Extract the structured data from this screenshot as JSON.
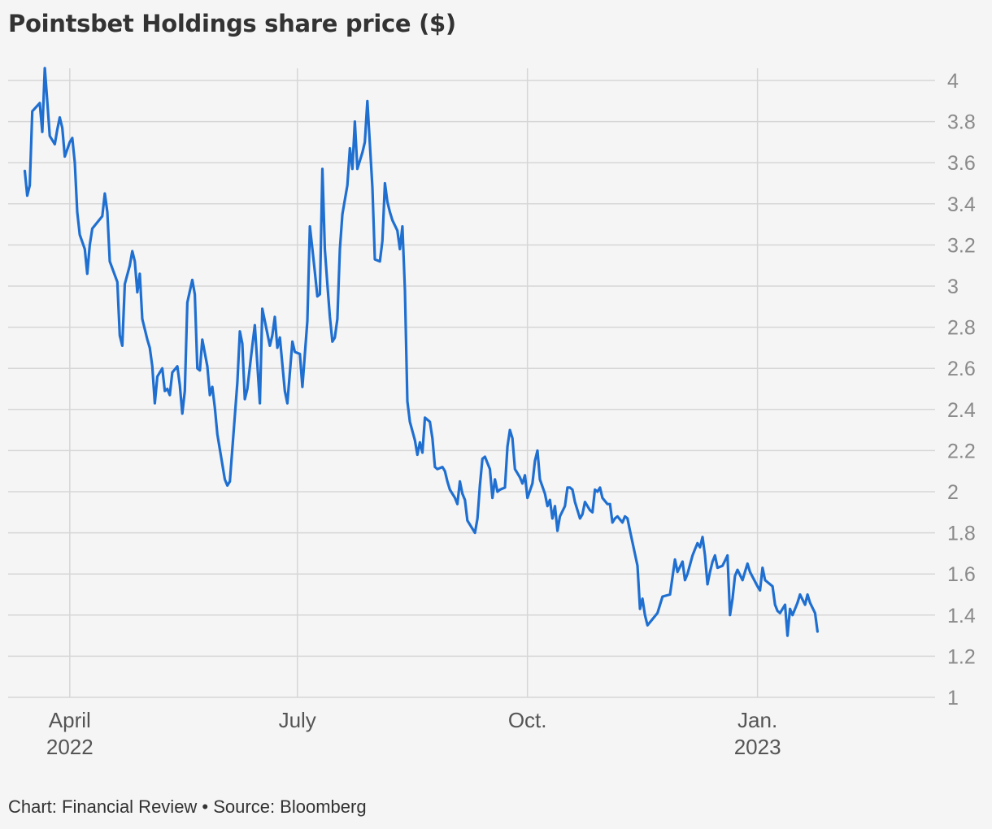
{
  "chart_data": {
    "type": "line",
    "title": "Pointsbet Holdings share price ($)",
    "xlabel": "",
    "ylabel": "",
    "ylim": [
      1,
      4
    ],
    "yticks": [
      "4",
      "3.8",
      "3.6",
      "3.4",
      "3.2",
      "3",
      "2.8",
      "2.6",
      "2.4",
      "2.2",
      "2",
      "1.8",
      "1.6",
      "1.4",
      "1.2",
      "1"
    ],
    "xticks": [
      {
        "label": "April",
        "sub": "2022",
        "day": 0
      },
      {
        "label": "July",
        "sub": "",
        "day": 91
      },
      {
        "label": "Oct.",
        "sub": "",
        "day": 183
      },
      {
        "label": "Jan.",
        "sub": "2023",
        "day": 275
      }
    ],
    "xlim_days": [
      -24,
      346
    ],
    "grid": true,
    "series": [
      {
        "name": "Pointsbet Holdings",
        "color": "#1f6fd1",
        "points": [
          [
            -18,
            3.56
          ],
          [
            -17,
            3.44
          ],
          [
            -16,
            3.49
          ],
          [
            -15,
            3.85
          ],
          [
            -12,
            3.89
          ],
          [
            -11,
            3.75
          ],
          [
            -10,
            4.06
          ],
          [
            -9,
            3.9
          ],
          [
            -8,
            3.73
          ],
          [
            -6,
            3.69
          ],
          [
            -5,
            3.76
          ],
          [
            -4,
            3.82
          ],
          [
            -3,
            3.77
          ],
          [
            -2,
            3.63
          ],
          [
            0,
            3.7
          ],
          [
            1,
            3.72
          ],
          [
            2,
            3.6
          ],
          [
            3,
            3.36
          ],
          [
            4,
            3.25
          ],
          [
            6,
            3.18
          ],
          [
            7,
            3.06
          ],
          [
            8,
            3.2
          ],
          [
            9,
            3.28
          ],
          [
            13,
            3.34
          ],
          [
            14,
            3.45
          ],
          [
            15,
            3.36
          ],
          [
            16,
            3.12
          ],
          [
            19,
            3.02
          ],
          [
            20,
            2.76
          ],
          [
            21,
            2.71
          ],
          [
            22,
            3.01
          ],
          [
            24,
            3.1
          ],
          [
            25,
            3.17
          ],
          [
            26,
            3.12
          ],
          [
            27,
            2.97
          ],
          [
            28,
            3.06
          ],
          [
            29,
            2.84
          ],
          [
            31,
            2.74
          ],
          [
            32,
            2.7
          ],
          [
            33,
            2.61
          ],
          [
            34,
            2.43
          ],
          [
            35,
            2.56
          ],
          [
            37,
            2.6
          ],
          [
            38,
            2.49
          ],
          [
            39,
            2.5
          ],
          [
            40,
            2.47
          ],
          [
            41,
            2.58
          ],
          [
            43,
            2.61
          ],
          [
            44,
            2.52
          ],
          [
            45,
            2.38
          ],
          [
            46,
            2.49
          ],
          [
            47,
            2.92
          ],
          [
            49,
            3.03
          ],
          [
            50,
            2.96
          ],
          [
            51,
            2.6
          ],
          [
            52,
            2.59
          ],
          [
            53,
            2.74
          ],
          [
            55,
            2.61
          ],
          [
            56,
            2.47
          ],
          [
            57,
            2.51
          ],
          [
            58,
            2.41
          ],
          [
            59,
            2.28
          ],
          [
            62,
            2.06
          ],
          [
            63,
            2.03
          ],
          [
            64,
            2.05
          ],
          [
            67,
            2.53
          ],
          [
            68,
            2.78
          ],
          [
            69,
            2.72
          ],
          [
            70,
            2.45
          ],
          [
            71,
            2.5
          ],
          [
            73,
            2.71
          ],
          [
            74,
            2.81
          ],
          [
            75,
            2.62
          ],
          [
            76,
            2.43
          ],
          [
            77,
            2.89
          ],
          [
            78,
            2.83
          ],
          [
            80,
            2.71
          ],
          [
            81,
            2.76
          ],
          [
            82,
            2.85
          ],
          [
            83,
            2.7
          ],
          [
            84,
            2.75
          ],
          [
            86,
            2.49
          ],
          [
            87,
            2.43
          ],
          [
            89,
            2.73
          ],
          [
            90,
            2.68
          ],
          [
            92,
            2.67
          ],
          [
            93,
            2.51
          ],
          [
            95,
            2.83
          ],
          [
            96,
            3.29
          ],
          [
            97,
            3.18
          ],
          [
            98,
            3.07
          ],
          [
            99,
            2.95
          ],
          [
            100,
            2.96
          ],
          [
            101,
            3.57
          ],
          [
            102,
            3.18
          ],
          [
            103,
            3.01
          ],
          [
            104,
            2.85
          ],
          [
            105,
            2.73
          ],
          [
            106,
            2.75
          ],
          [
            107,
            2.84
          ],
          [
            108,
            3.18
          ],
          [
            109,
            3.35
          ],
          [
            111,
            3.49
          ],
          [
            112,
            3.67
          ],
          [
            113,
            3.57
          ],
          [
            114,
            3.8
          ],
          [
            115,
            3.57
          ],
          [
            116,
            3.61
          ],
          [
            117,
            3.65
          ],
          [
            118,
            3.7
          ],
          [
            119,
            3.9
          ],
          [
            121,
            3.48
          ],
          [
            122,
            3.13
          ],
          [
            124,
            3.12
          ],
          [
            125,
            3.22
          ],
          [
            126,
            3.5
          ],
          [
            127,
            3.41
          ],
          [
            128,
            3.36
          ],
          [
            129,
            3.32
          ],
          [
            131,
            3.27
          ],
          [
            132,
            3.18
          ],
          [
            133,
            3.29
          ],
          [
            134,
            2.98
          ],
          [
            135,
            2.44
          ],
          [
            136,
            2.34
          ],
          [
            138,
            2.25
          ],
          [
            139,
            2.18
          ],
          [
            140,
            2.24
          ],
          [
            141,
            2.19
          ],
          [
            142,
            2.36
          ],
          [
            144,
            2.34
          ],
          [
            145,
            2.26
          ],
          [
            146,
            2.12
          ],
          [
            147,
            2.11
          ],
          [
            149,
            2.12
          ],
          [
            150,
            2.1
          ],
          [
            151,
            2.05
          ],
          [
            152,
            2.01
          ],
          [
            154,
            1.97
          ],
          [
            155,
            1.94
          ],
          [
            156,
            2.05
          ],
          [
            157,
            1.99
          ],
          [
            158,
            1.96
          ],
          [
            159,
            1.86
          ],
          [
            161,
            1.82
          ],
          [
            162,
            1.8
          ],
          [
            163,
            1.87
          ],
          [
            164,
            2.03
          ],
          [
            165,
            2.16
          ],
          [
            166,
            2.17
          ],
          [
            168,
            2.11
          ],
          [
            169,
            1.97
          ],
          [
            170,
            2.06
          ],
          [
            171,
            2.0
          ],
          [
            172,
            2.01
          ],
          [
            174,
            2.02
          ],
          [
            175,
            2.22
          ],
          [
            176,
            2.3
          ],
          [
            177,
            2.26
          ],
          [
            178,
            2.11
          ],
          [
            180,
            2.07
          ],
          [
            181,
            2.04
          ],
          [
            182,
            2.08
          ],
          [
            183,
            1.97
          ],
          [
            185,
            2.04
          ],
          [
            186,
            2.15
          ],
          [
            187,
            2.2
          ],
          [
            188,
            2.06
          ],
          [
            190,
            1.99
          ],
          [
            191,
            1.93
          ],
          [
            192,
            1.96
          ],
          [
            193,
            1.87
          ],
          [
            194,
            1.93
          ],
          [
            195,
            1.81
          ],
          [
            196,
            1.88
          ],
          [
            198,
            1.93
          ],
          [
            199,
            2.02
          ],
          [
            200,
            2.02
          ],
          [
            201,
            2.01
          ],
          [
            202,
            1.95
          ],
          [
            204,
            1.87
          ],
          [
            205,
            1.89
          ],
          [
            206,
            1.95
          ],
          [
            208,
            1.91
          ],
          [
            209,
            1.9
          ],
          [
            210,
            2.01
          ],
          [
            211,
            2.0
          ],
          [
            212,
            2.02
          ],
          [
            213,
            1.97
          ],
          [
            215,
            1.94
          ],
          [
            216,
            1.94
          ],
          [
            217,
            1.85
          ],
          [
            218,
            1.87
          ],
          [
            219,
            1.88
          ],
          [
            221,
            1.85
          ],
          [
            222,
            1.88
          ],
          [
            223,
            1.87
          ],
          [
            224,
            1.81
          ],
          [
            227,
            1.64
          ],
          [
            228,
            1.43
          ],
          [
            229,
            1.48
          ],
          [
            230,
            1.4
          ],
          [
            231,
            1.35
          ],
          [
            235,
            1.41
          ],
          [
            237,
            1.49
          ],
          [
            240,
            1.5
          ],
          [
            242,
            1.67
          ],
          [
            243,
            1.61
          ],
          [
            245,
            1.66
          ],
          [
            246,
            1.57
          ],
          [
            247,
            1.6
          ],
          [
            249,
            1.69
          ],
          [
            250,
            1.72
          ],
          [
            251,
            1.75
          ],
          [
            252,
            1.73
          ],
          [
            253,
            1.78
          ],
          [
            254,
            1.69
          ],
          [
            255,
            1.55
          ],
          [
            256,
            1.61
          ],
          [
            257,
            1.66
          ],
          [
            258,
            1.69
          ],
          [
            259,
            1.63
          ],
          [
            261,
            1.64
          ],
          [
            263,
            1.69
          ],
          [
            264,
            1.4
          ],
          [
            265,
            1.48
          ],
          [
            266,
            1.59
          ],
          [
            267,
            1.62
          ],
          [
            269,
            1.57
          ],
          [
            270,
            1.61
          ],
          [
            271,
            1.65
          ],
          [
            272,
            1.61
          ],
          [
            275,
            1.54
          ],
          [
            276,
            1.52
          ],
          [
            277,
            1.63
          ],
          [
            278,
            1.57
          ],
          [
            281,
            1.54
          ],
          [
            282,
            1.45
          ],
          [
            283,
            1.42
          ],
          [
            284,
            1.41
          ],
          [
            286,
            1.45
          ],
          [
            287,
            1.3
          ],
          [
            288,
            1.43
          ],
          [
            289,
            1.4
          ],
          [
            291,
            1.46
          ],
          [
            292,
            1.5
          ],
          [
            294,
            1.45
          ],
          [
            295,
            1.5
          ],
          [
            296,
            1.46
          ],
          [
            298,
            1.41
          ],
          [
            299,
            1.32
          ]
        ]
      }
    ],
    "source": "Chart: Financial Review • Source: Bloomberg"
  }
}
